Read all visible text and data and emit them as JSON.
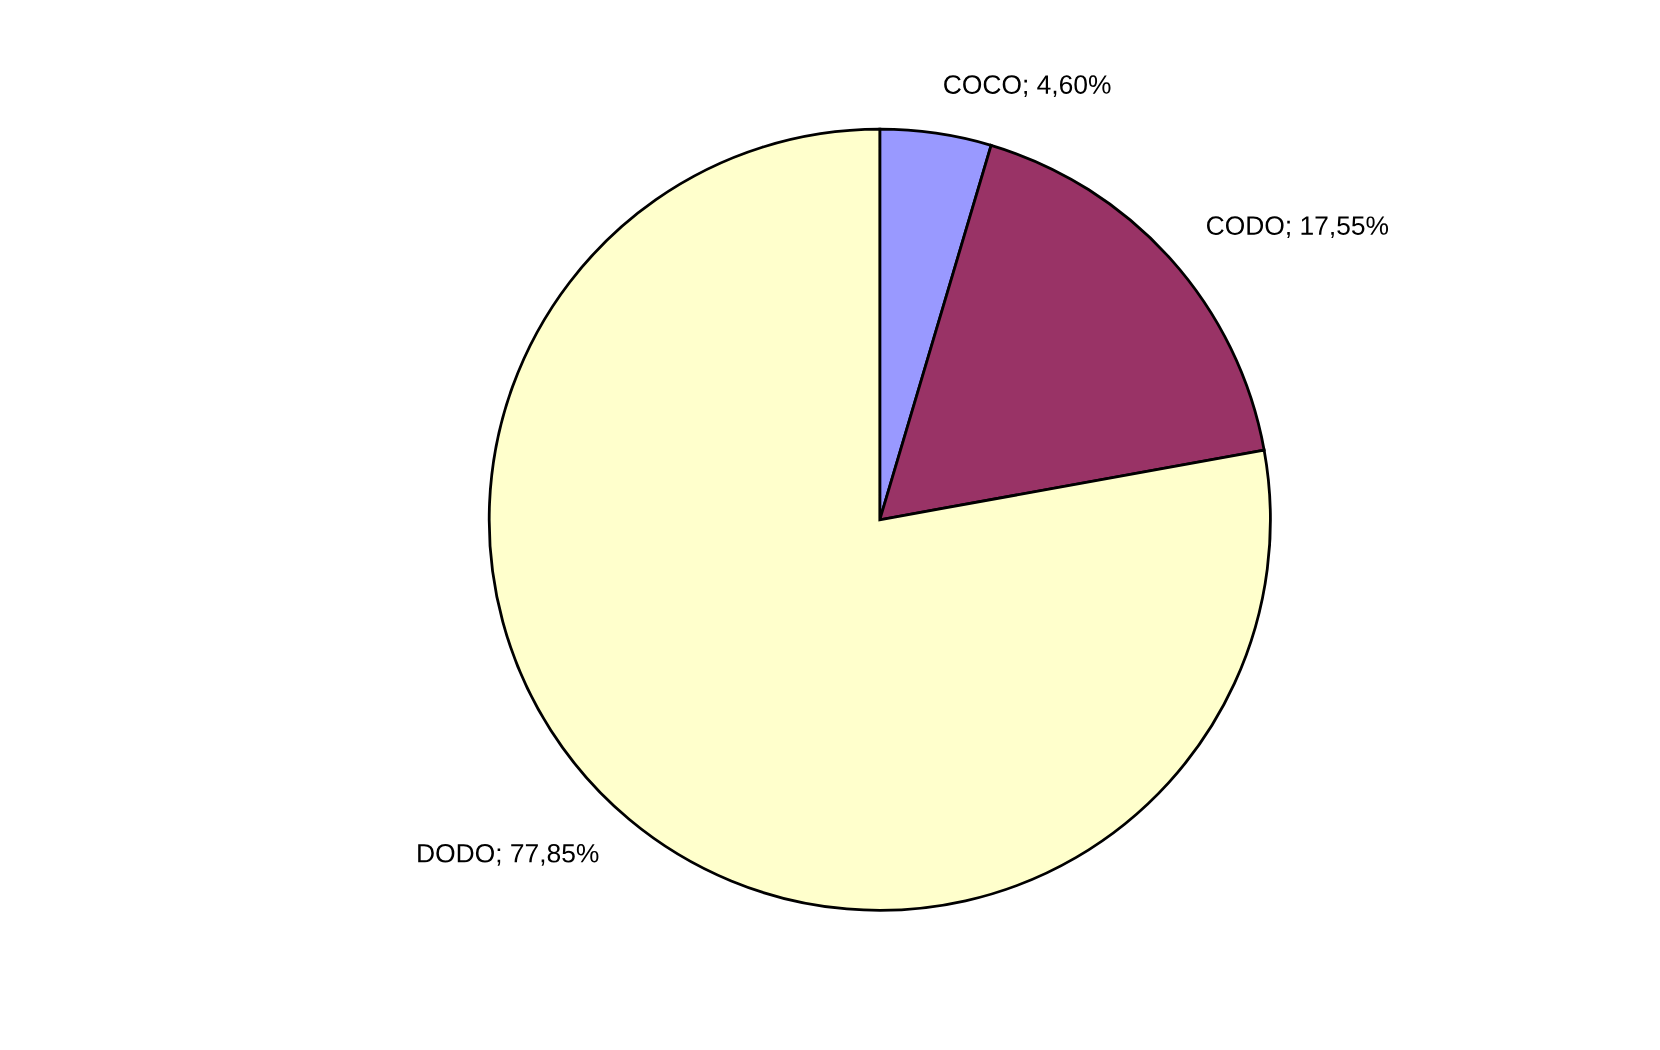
{
  "chart_data": {
    "type": "pie",
    "categories": [
      "COCO",
      "CODO",
      "DODO"
    ],
    "values": [
      4.6,
      17.55,
      77.85
    ],
    "value_labels": [
      "4,60%",
      "17,55%",
      "77,85%"
    ],
    "colors": [
      "#9999ff",
      "#993366",
      "#ffffcc"
    ]
  }
}
